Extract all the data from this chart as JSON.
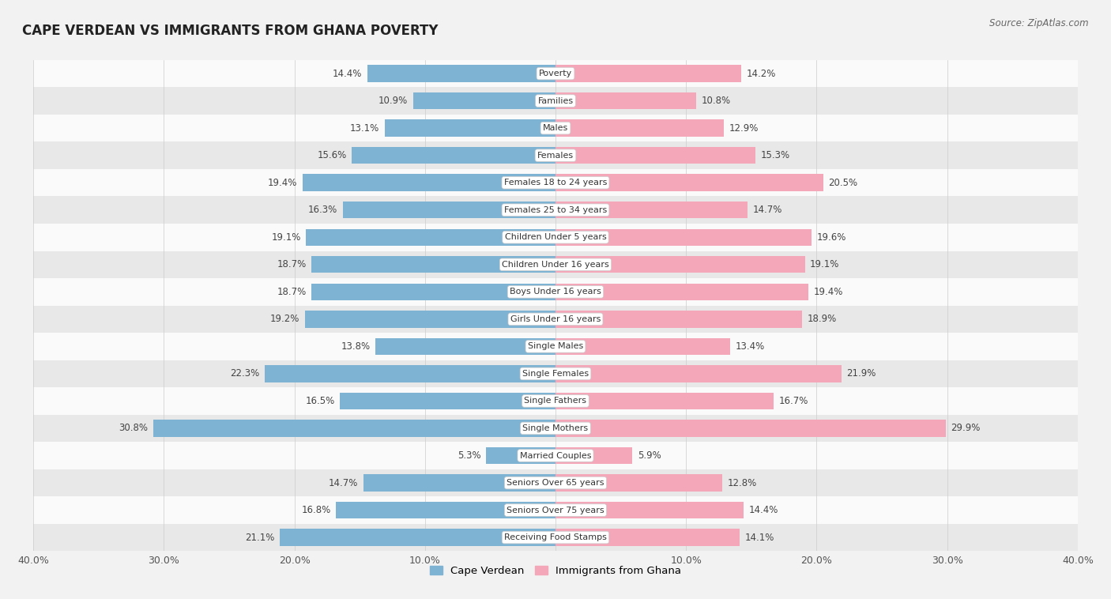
{
  "title": "CAPE VERDEAN VS IMMIGRANTS FROM GHANA POVERTY",
  "source": "Source: ZipAtlas.com",
  "categories": [
    "Poverty",
    "Families",
    "Males",
    "Females",
    "Females 18 to 24 years",
    "Females 25 to 34 years",
    "Children Under 5 years",
    "Children Under 16 years",
    "Boys Under 16 years",
    "Girls Under 16 years",
    "Single Males",
    "Single Females",
    "Single Fathers",
    "Single Mothers",
    "Married Couples",
    "Seniors Over 65 years",
    "Seniors Over 75 years",
    "Receiving Food Stamps"
  ],
  "cape_verdean": [
    14.4,
    10.9,
    13.1,
    15.6,
    19.4,
    16.3,
    19.1,
    18.7,
    18.7,
    19.2,
    13.8,
    22.3,
    16.5,
    30.8,
    5.3,
    14.7,
    16.8,
    21.1
  ],
  "ghana": [
    14.2,
    10.8,
    12.9,
    15.3,
    20.5,
    14.7,
    19.6,
    19.1,
    19.4,
    18.9,
    13.4,
    21.9,
    16.7,
    29.9,
    5.9,
    12.8,
    14.4,
    14.1
  ],
  "cape_verdean_color": "#7fb3d3",
  "ghana_color": "#f4a7b9",
  "background_color": "#f2f2f2",
  "row_bg_light": "#fafafa",
  "row_bg_dark": "#e8e8e8",
  "xlim": 40.0,
  "legend_label_cv": "Cape Verdean",
  "legend_label_gh": "Immigrants from Ghana",
  "tick_positions": [
    -40,
    -30,
    -20,
    -10,
    0,
    10,
    20,
    30,
    40
  ],
  "tick_labels": [
    "40.0%",
    "30.0%",
    "20.0%",
    "10.0%",
    "",
    "10.0%",
    "20.0%",
    "30.0%",
    "40.0%"
  ]
}
